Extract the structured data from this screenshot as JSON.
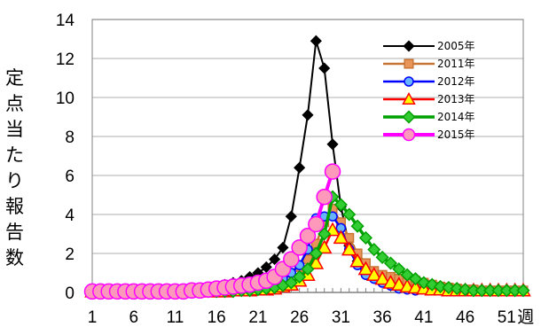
{
  "chart_data": {
    "type": "line",
    "title": "",
    "xlabel": "週",
    "ylabel": "定点当たり報告数",
    "xlim": [
      1,
      53
    ],
    "ylim": [
      0,
      14
    ],
    "yticks": [
      0,
      2,
      4,
      6,
      8,
      10,
      12,
      14
    ],
    "xticks": [
      1,
      6,
      11,
      16,
      21,
      26,
      31,
      36,
      41,
      46,
      51
    ],
    "grid": true,
    "legend_position": "top-right",
    "series": [
      {
        "name": "2005年",
        "color": "#000000",
        "marker": "diamond",
        "x": [
          1,
          2,
          3,
          4,
          5,
          6,
          7,
          8,
          9,
          10,
          11,
          12,
          13,
          14,
          15,
          16,
          17,
          18,
          19,
          20,
          21,
          22,
          23,
          24,
          25,
          26,
          27,
          28,
          29,
          30,
          31,
          32,
          33,
          34,
          35,
          36,
          37,
          38,
          39,
          40
        ],
        "values": [
          0.05,
          0.05,
          0.05,
          0.05,
          0.05,
          0.05,
          0.05,
          0.05,
          0.05,
          0.05,
          0.1,
          0.1,
          0.15,
          0.2,
          0.25,
          0.3,
          0.4,
          0.5,
          0.6,
          0.8,
          1.0,
          1.3,
          1.7,
          2.3,
          3.9,
          6.4,
          9.1,
          12.9,
          11.5,
          7.6,
          4.4,
          2.4,
          1.6,
          1.1,
          0.8,
          0.6,
          0.45,
          0.3,
          0.2,
          0.15
        ]
      },
      {
        "name": "2011年",
        "color": "#c87533",
        "marker": "square",
        "x": [
          1,
          2,
          3,
          4,
          5,
          6,
          7,
          8,
          9,
          10,
          11,
          12,
          13,
          14,
          15,
          16,
          17,
          18,
          19,
          20,
          21,
          22,
          23,
          24,
          25,
          26,
          27,
          28,
          29,
          30,
          31,
          32,
          33,
          34,
          35,
          36,
          37,
          38,
          39,
          40,
          41,
          42,
          43,
          44,
          45,
          46,
          47,
          48,
          49,
          50,
          51,
          52,
          53
        ],
        "values": [
          0.05,
          0.05,
          0.05,
          0.05,
          0.05,
          0.05,
          0.05,
          0.05,
          0.05,
          0.05,
          0.05,
          0.05,
          0.05,
          0.05,
          0.1,
          0.1,
          0.15,
          0.15,
          0.2,
          0.25,
          0.3,
          0.4,
          0.5,
          0.7,
          1.0,
          1.3,
          1.7,
          2.5,
          3.6,
          4.3,
          3.6,
          2.8,
          2.0,
          1.5,
          1.1,
          0.9,
          0.8,
          0.7,
          0.6,
          0.6,
          0.5,
          0.4,
          0.3,
          0.25,
          0.2,
          0.15,
          0.15,
          0.1,
          0.1,
          0.1,
          0.1,
          0.1,
          0.1
        ]
      },
      {
        "name": "2012年",
        "color": "#0000ff",
        "marker": "circle",
        "x": [
          1,
          2,
          3,
          4,
          5,
          6,
          7,
          8,
          9,
          10,
          11,
          12,
          13,
          14,
          15,
          16,
          17,
          18,
          19,
          20,
          21,
          22,
          23,
          24,
          25,
          26,
          27,
          28,
          29,
          30,
          31,
          32,
          33,
          34,
          35,
          36,
          37,
          38,
          39,
          40
        ],
        "values": [
          0.05,
          0.05,
          0.05,
          0.05,
          0.05,
          0.05,
          0.05,
          0.05,
          0.05,
          0.05,
          0.05,
          0.05,
          0.05,
          0.05,
          0.05,
          0.1,
          0.1,
          0.15,
          0.2,
          0.25,
          0.3,
          0.4,
          0.5,
          0.7,
          1.0,
          1.4,
          2.2,
          3.8,
          3.9,
          3.9,
          3.3,
          2.2,
          1.4,
          0.9,
          0.7,
          0.5,
          0.35,
          0.2,
          0.15,
          0.1
        ]
      },
      {
        "name": "2013年",
        "color": "#ff0000",
        "marker": "triangle",
        "x": [
          1,
          2,
          3,
          4,
          5,
          6,
          7,
          8,
          9,
          10,
          11,
          12,
          13,
          14,
          15,
          16,
          17,
          18,
          19,
          20,
          21,
          22,
          23,
          24,
          25,
          26,
          27,
          28,
          29,
          30,
          31,
          32,
          33,
          34,
          35,
          36,
          37,
          38,
          39,
          40,
          41,
          42,
          43,
          44,
          45,
          46,
          47,
          48,
          49,
          50,
          51,
          52,
          53
        ],
        "values": [
          0.05,
          0.05,
          0.05,
          0.05,
          0.05,
          0.05,
          0.05,
          0.05,
          0.05,
          0.05,
          0.05,
          0.05,
          0.05,
          0.05,
          0.05,
          0.05,
          0.05,
          0.1,
          0.1,
          0.1,
          0.15,
          0.15,
          0.2,
          0.3,
          0.4,
          0.6,
          0.9,
          1.5,
          2.3,
          3.2,
          2.8,
          2.2,
          1.6,
          1.2,
          0.9,
          0.7,
          0.5,
          0.4,
          0.3,
          0.25,
          0.2,
          0.15,
          0.15,
          0.1,
          0.1,
          0.1,
          0.1,
          0.1,
          0.1,
          0.1,
          0.1,
          0.1,
          0.1
        ]
      },
      {
        "name": "2014年",
        "color": "#00a000",
        "marker": "diamond",
        "x": [
          1,
          2,
          3,
          4,
          5,
          6,
          7,
          8,
          9,
          10,
          11,
          12,
          13,
          14,
          15,
          16,
          17,
          18,
          19,
          20,
          21,
          22,
          23,
          24,
          25,
          26,
          27,
          28,
          29,
          30,
          31,
          32,
          33,
          34,
          35,
          36,
          37,
          38,
          39,
          40,
          41,
          42,
          43,
          44,
          45,
          46,
          47,
          48,
          49,
          50,
          51,
          52,
          53
        ],
        "values": [
          0.05,
          0.05,
          0.05,
          0.05,
          0.05,
          0.05,
          0.05,
          0.05,
          0.05,
          0.05,
          0.05,
          0.05,
          0.05,
          0.05,
          0.05,
          0.05,
          0.05,
          0.05,
          0.1,
          0.1,
          0.15,
          0.2,
          0.25,
          0.35,
          0.5,
          0.8,
          1.2,
          2.0,
          3.0,
          4.9,
          4.5,
          4.0,
          3.4,
          2.8,
          2.2,
          1.8,
          1.5,
          1.2,
          0.9,
          0.7,
          0.5,
          0.4,
          0.3,
          0.25,
          0.2,
          0.15,
          0.1,
          0.1,
          0.1,
          0.1,
          0.1,
          0.1,
          0.1
        ]
      },
      {
        "name": "2015年",
        "color": "#ff00ff",
        "markerFill": "#ff99bb",
        "marker": "circle",
        "x": [
          1,
          2,
          3,
          4,
          5,
          6,
          7,
          8,
          9,
          10,
          11,
          12,
          13,
          14,
          15,
          16,
          17,
          18,
          19,
          20,
          21,
          22,
          23,
          24,
          25,
          26,
          27,
          28,
          29,
          30
        ],
        "values": [
          0.05,
          0.05,
          0.05,
          0.05,
          0.05,
          0.05,
          0.05,
          0.05,
          0.05,
          0.05,
          0.05,
          0.05,
          0.1,
          0.1,
          0.15,
          0.2,
          0.25,
          0.3,
          0.35,
          0.4,
          0.5,
          0.6,
          0.8,
          1.2,
          1.7,
          2.3,
          2.9,
          3.5,
          4.9,
          6.2
        ]
      }
    ]
  }
}
